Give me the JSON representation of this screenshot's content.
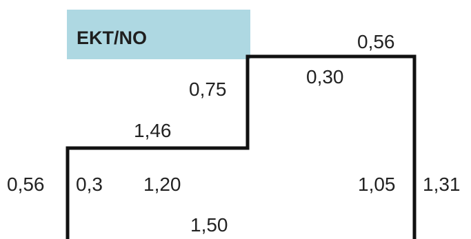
{
  "header": {
    "label": "EKT/NO",
    "background_color": "#aed8e2"
  },
  "outline_color": "#111111",
  "dimensions": {
    "top_right_width": "0,56",
    "upper_step_width": "0,30",
    "step_riser_height": "0,75",
    "lower_step_width": "1,46",
    "left_outer_height": "0,56",
    "left_inner_small": "0,3",
    "left_inner_height": "1,20",
    "right_inner_height": "1,05",
    "right_outer_height": "1,31",
    "bottom_width": "1,50"
  }
}
